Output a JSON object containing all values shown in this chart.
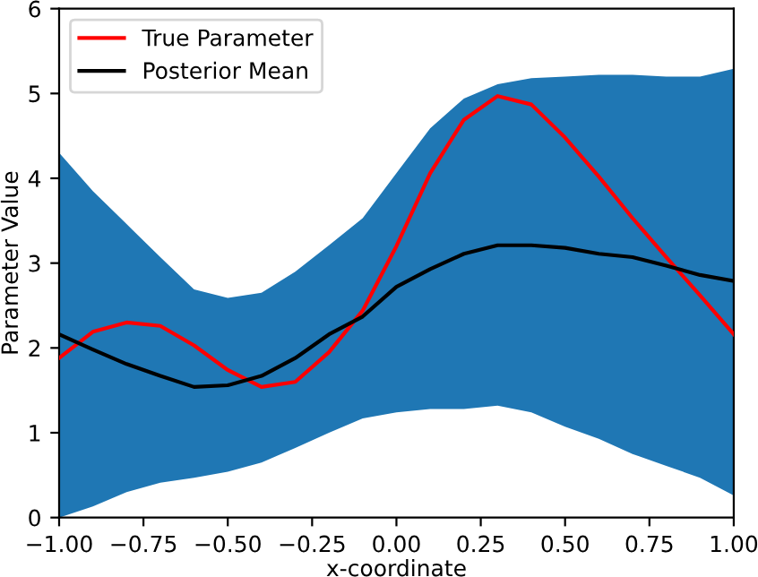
{
  "chart_data": {
    "type": "line",
    "xlabel": "x-coordinate",
    "ylabel": "Parameter Value",
    "x": [
      -1.0,
      -0.9,
      -0.8,
      -0.7,
      -0.6,
      -0.5,
      -0.4,
      -0.3,
      -0.2,
      -0.1,
      0.0,
      0.1,
      0.2,
      0.3,
      0.4,
      0.5,
      0.6,
      0.7,
      0.8,
      0.9,
      1.0
    ],
    "series": [
      {
        "name": "True Parameter",
        "color": "#ff0000",
        "values": [
          1.88,
          2.19,
          2.3,
          2.26,
          2.03,
          1.74,
          1.54,
          1.6,
          1.95,
          2.44,
          3.2,
          4.06,
          4.69,
          4.97,
          4.87,
          4.48,
          4.02,
          3.53,
          3.07,
          2.62,
          2.16
        ]
      },
      {
        "name": "Posterior Mean",
        "color": "#000000",
        "values": [
          2.16,
          1.98,
          1.81,
          1.67,
          1.54,
          1.56,
          1.67,
          1.88,
          2.16,
          2.37,
          2.72,
          2.93,
          3.11,
          3.21,
          3.21,
          3.18,
          3.11,
          3.07,
          2.97,
          2.86,
          2.79
        ],
        "lower": [
          0.0,
          0.13,
          0.3,
          0.41,
          0.47,
          0.54,
          0.65,
          0.82,
          1.0,
          1.17,
          1.24,
          1.28,
          1.28,
          1.32,
          1.24,
          1.07,
          0.93,
          0.75,
          0.61,
          0.47,
          0.26
        ],
        "upper": [
          4.3,
          3.85,
          3.46,
          3.07,
          2.69,
          2.59,
          2.65,
          2.9,
          3.21,
          3.53,
          4.06,
          4.59,
          4.94,
          5.11,
          5.18,
          5.2,
          5.22,
          5.22,
          5.2,
          5.2,
          5.29
        ]
      }
    ],
    "xlim": [
      -1.0,
      1.0
    ],
    "xticks": [
      {
        "value": -1.0,
        "label": "−1.00"
      },
      {
        "value": -0.75,
        "label": "−0.75"
      },
      {
        "value": -0.5,
        "label": "−0.50"
      },
      {
        "value": -0.25,
        "label": "−0.25"
      },
      {
        "value": 0.0,
        "label": "0.00"
      },
      {
        "value": 0.25,
        "label": "0.25"
      },
      {
        "value": 0.5,
        "label": "0.50"
      },
      {
        "value": 0.75,
        "label": "0.75"
      },
      {
        "value": 1.0,
        "label": "1.00"
      }
    ],
    "ylim": [
      0,
      6
    ],
    "yticks": [
      0,
      1,
      2,
      3,
      4,
      5,
      6
    ],
    "grid": false,
    "legend": "top left"
  }
}
